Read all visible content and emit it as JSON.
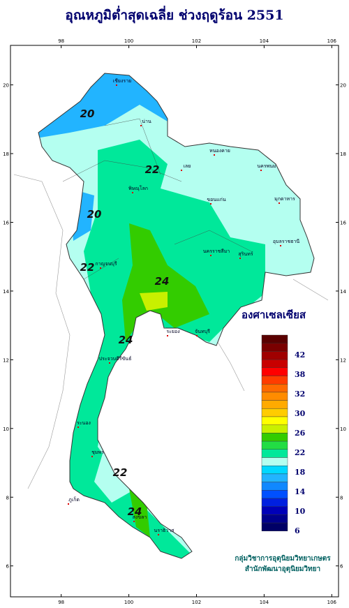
{
  "header": {
    "title": "อุณหภูมิต่ำสุดเฉลี่ย ช่วงฤดูร้อน 2551"
  },
  "map": {
    "lon_range": [
      96.5,
      106.2
    ],
    "lat_range": [
      5.1,
      21.15
    ],
    "lon_ticks": [
      98,
      100,
      102,
      104,
      106
    ],
    "lat_ticks": [
      20,
      18,
      16,
      14,
      12,
      10,
      8,
      6
    ],
    "contour_labels": [
      "20",
      "20",
      "22",
      "22",
      "24",
      "24",
      "24",
      "22"
    ],
    "places": [
      "เชียงราย",
      "น่าน",
      "เลย",
      "หนองคาย",
      "นครพนม",
      "ขอนแก่น",
      "มุกดาหาร",
      "อุบลราชธานี",
      "นครราชสีมา",
      "สุรินทร์",
      "ระยอง",
      "จันทบุรี",
      "ประจวบคีรีขันธ์",
      "ระนอง",
      "ชุมพร",
      "ภูเก็ต",
      "สงขลา",
      "นราธิวาส",
      "กาญจนบุรี",
      "พิษณุโลก"
    ]
  },
  "legend": {
    "title": "องศาเซลเซียส",
    "colors": [
      "#5a0000",
      "#7a0000",
      "#a00000",
      "#c80000",
      "#ff0000",
      "#ff3c00",
      "#ff6a00",
      "#ff8c00",
      "#ffaa00",
      "#ffcc00",
      "#ffff00",
      "#c8f000",
      "#33cc00",
      "#22dd44",
      "#00e89a",
      "#b4fff0",
      "#00d8ff",
      "#22b4ff",
      "#1088ff",
      "#0050ff",
      "#0020e0",
      "#0000b8",
      "#00008c",
      "#000066"
    ],
    "labels": [
      "42",
      "38",
      "32",
      "30",
      "26",
      "22",
      "18",
      "14",
      "10",
      "6"
    ]
  },
  "credits": [
    "กลุ่มวิชาการอุตุนิยมวิทยาเกษตร",
    "สำนักพัฒนาอุตุนิยมวิทยา"
  ]
}
